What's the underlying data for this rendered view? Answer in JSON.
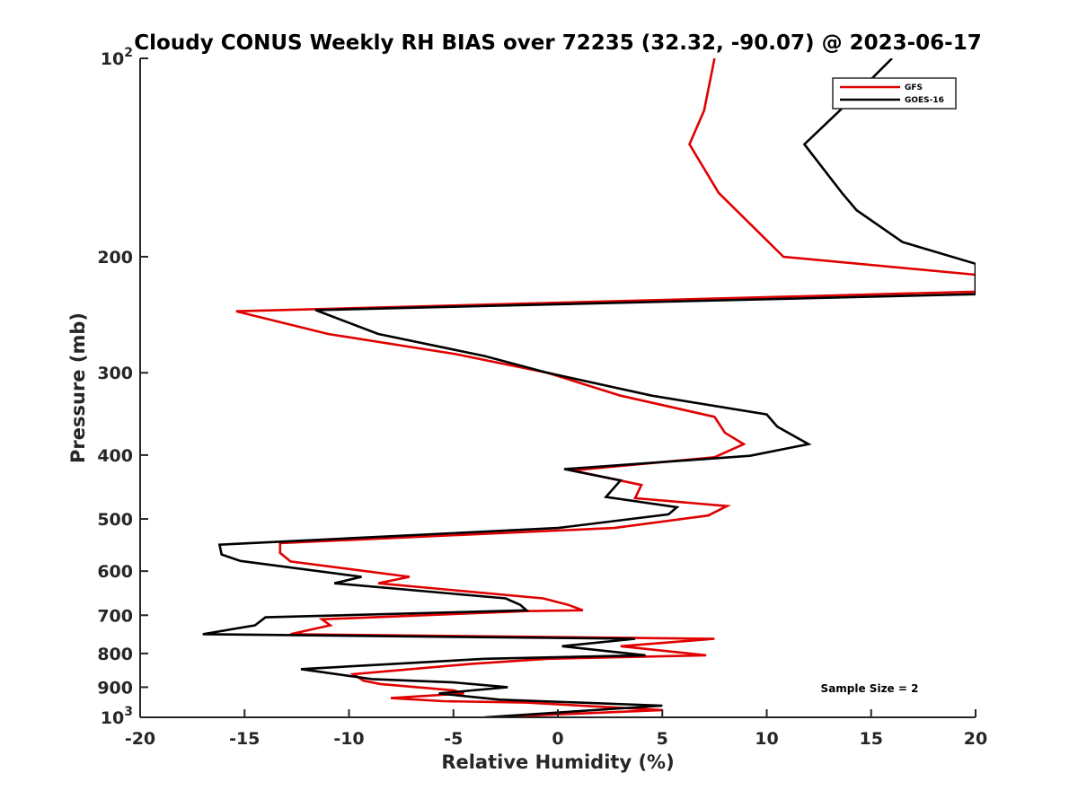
{
  "chart_data": {
    "type": "line",
    "title": "Cloudy CONUS Weekly RH BIAS over 72235 (32.32, -90.07) @ 2023-06-17",
    "xlabel": "Relative Humidity (%)",
    "ylabel": "Pressure (mb)",
    "xlim": [
      -20,
      20
    ],
    "ylim": [
      100,
      1000
    ],
    "y_scale": "log",
    "y_reversed": true,
    "x_ticks": [
      {
        "value": -20,
        "label": "-20"
      },
      {
        "value": -15,
        "label": "-15"
      },
      {
        "value": -10,
        "label": "-10"
      },
      {
        "value": -5,
        "label": "-5"
      },
      {
        "value": 0,
        "label": "0"
      },
      {
        "value": 5,
        "label": "5"
      },
      {
        "value": 10,
        "label": "10"
      },
      {
        "value": 15,
        "label": "15"
      },
      {
        "value": 20,
        "label": "20"
      }
    ],
    "y_ticks": [
      {
        "value": 100,
        "base": "10",
        "exp": "2"
      },
      {
        "value": 200,
        "label": "200"
      },
      {
        "value": 300,
        "label": "300"
      },
      {
        "value": 400,
        "label": "400"
      },
      {
        "value": 500,
        "label": "500"
      },
      {
        "value": 600,
        "label": "600"
      },
      {
        "value": 700,
        "label": "700"
      },
      {
        "value": 800,
        "label": "800"
      },
      {
        "value": 900,
        "label": "900"
      },
      {
        "value": 1000,
        "base": "10",
        "exp": "3"
      }
    ],
    "legend": {
      "position": "top-right"
    },
    "annotation": "Sample Size = 2",
    "series": [
      {
        "name": "GFS",
        "color": "#e00000",
        "points": [
          [
            7.5,
            100
          ],
          [
            7.0,
            120
          ],
          [
            6.3,
            135
          ],
          [
            7.7,
            160
          ],
          [
            10.8,
            200
          ],
          [
            20.0,
            213
          ],
          [
            20.0,
            226
          ],
          [
            -15.4,
            242
          ],
          [
            -11.0,
            262
          ],
          [
            -4.9,
            281
          ],
          [
            -0.5,
            300
          ],
          [
            3.0,
            325
          ],
          [
            7.5,
            350
          ],
          [
            8.0,
            370
          ],
          [
            8.9,
            385
          ],
          [
            7.5,
            403
          ],
          [
            0.7,
            422
          ],
          [
            4.0,
            444
          ],
          [
            3.7,
            465
          ],
          [
            8.1,
            478
          ],
          [
            7.2,
            494
          ],
          [
            2.7,
            516
          ],
          [
            -13.3,
            544
          ],
          [
            -13.3,
            563
          ],
          [
            -12.8,
            580
          ],
          [
            -7.1,
            612
          ],
          [
            -8.6,
            626
          ],
          [
            -0.7,
            660
          ],
          [
            0.5,
            675
          ],
          [
            1.2,
            688
          ],
          [
            -1.5,
            690
          ],
          [
            -11.3,
            710
          ],
          [
            -10.9,
            725
          ],
          [
            -11.5,
            732
          ],
          [
            -12.8,
            748
          ],
          [
            7.5,
            760
          ],
          [
            3.0,
            780
          ],
          [
            7.1,
            805
          ],
          [
            -0.5,
            815
          ],
          [
            -4.2,
            830
          ],
          [
            -9.8,
            860
          ],
          [
            -9.3,
            880
          ],
          [
            -8.5,
            890
          ],
          [
            -5.0,
            910
          ],
          [
            -4.5,
            920
          ],
          [
            -8.0,
            935
          ],
          [
            -5.5,
            945
          ],
          [
            -1.5,
            950
          ],
          [
            5.0,
            975
          ],
          [
            -3.4,
            1000
          ]
        ]
      },
      {
        "name": "GOES-16",
        "color": "#000000",
        "points": [
          [
            16.0,
            100
          ],
          [
            13.5,
            120
          ],
          [
            11.8,
            135
          ],
          [
            13.6,
            160
          ],
          [
            14.3,
            170
          ],
          [
            16.5,
            190
          ],
          [
            20.0,
            205
          ],
          [
            20.0,
            228
          ],
          [
            -11.6,
            241
          ],
          [
            -8.6,
            262
          ],
          [
            -3.5,
            283
          ],
          [
            -0.5,
            300
          ],
          [
            4.5,
            325
          ],
          [
            10.0,
            347
          ],
          [
            10.5,
            362
          ],
          [
            12.0,
            385
          ],
          [
            9.2,
            401
          ],
          [
            0.3,
            420
          ],
          [
            3.0,
            437
          ],
          [
            2.3,
            463
          ],
          [
            5.7,
            480
          ],
          [
            5.3,
            492
          ],
          [
            0.0,
            516
          ],
          [
            -16.2,
            547
          ],
          [
            -16.1,
            566
          ],
          [
            -15.2,
            579
          ],
          [
            -9.4,
            612
          ],
          [
            -10.7,
            626
          ],
          [
            -2.5,
            660
          ],
          [
            -1.8,
            675
          ],
          [
            -1.5,
            688
          ],
          [
            -14.0,
            705
          ],
          [
            -14.5,
            725
          ],
          [
            -17.0,
            748
          ],
          [
            3.7,
            760
          ],
          [
            0.2,
            780
          ],
          [
            4.2,
            805
          ],
          [
            -3.5,
            815
          ],
          [
            -12.3,
            845
          ],
          [
            -8.9,
            875
          ],
          [
            -5.0,
            885
          ],
          [
            -2.4,
            900
          ],
          [
            -5.7,
            920
          ],
          [
            -2.8,
            940
          ],
          [
            5.0,
            960
          ],
          [
            -3.5,
            1000
          ]
        ]
      }
    ]
  }
}
